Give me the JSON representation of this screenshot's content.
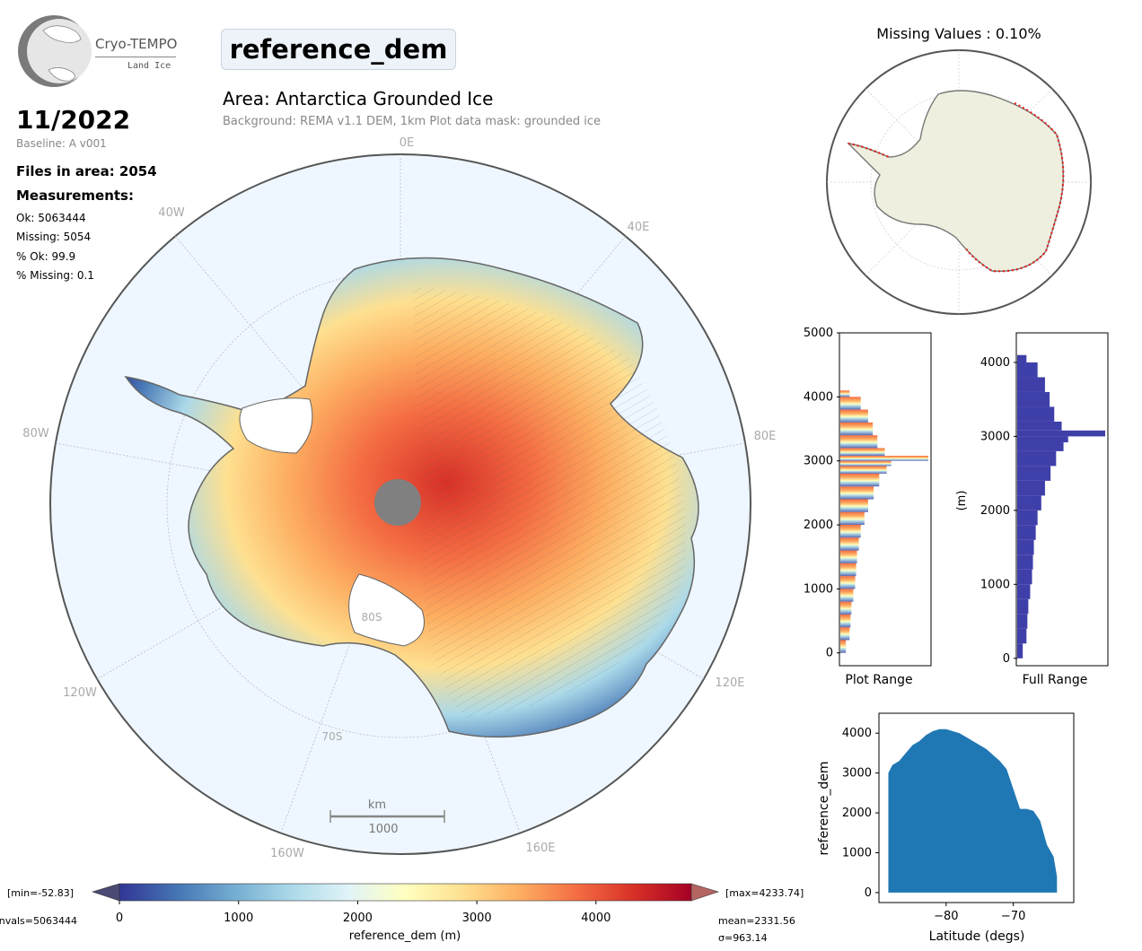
{
  "header": {
    "logo_text": "Cryo-TEMPO",
    "logo_sub": "Land Ice",
    "parameter": "reference_dem",
    "area_title": "Area: Antarctica Grounded Ice",
    "area_subtitle": "Background: REMA v1.1 DEM, 1km   Plot data mask: grounded ice"
  },
  "info": {
    "period": "11/2022",
    "baseline": "Baseline: A v001",
    "files": "Files in area: 2054",
    "measurements_heading": "Measurements:",
    "ok": "Ok: 5063444",
    "missing": "Missing: 5054",
    "pct_ok": "% Ok: 99.9",
    "pct_missing": "% Missing: 0.1"
  },
  "map": {
    "lon_labels": [
      "0E",
      "40E",
      "80E",
      "120E",
      "160E",
      "160W",
      "120W",
      "80W",
      "40W"
    ],
    "lat_labels": [
      "80S",
      "70S"
    ],
    "scalebar_unit": "km",
    "scalebar_value": "1000",
    "ocean_color": "#eef7ff",
    "land_color": "#ffffff"
  },
  "missing_map": {
    "title": "Missing Values : 0.10%",
    "land_color": "#efefdf",
    "missing_color": "#e8211c"
  },
  "colorbar": {
    "min_label": "[min=-52.83]",
    "max_label": "[max=4233.74]",
    "nvals_label": "nvals=5063444",
    "mean_label": "mean=2331.56",
    "sigma_label": "σ=963.14",
    "label": "reference_dem (m)",
    "ticks": [
      "0",
      "1000",
      "2000",
      "3000",
      "4000"
    ],
    "range": [
      0,
      4800
    ],
    "colors": [
      "#313695",
      "#4575b4",
      "#74add1",
      "#abd9e9",
      "#e0f3f8",
      "#ffffbf",
      "#fee090",
      "#fdae61",
      "#f46d43",
      "#d73027",
      "#a50026"
    ]
  },
  "chart_data": [
    {
      "type": "bar",
      "orientation": "horizontal",
      "title": "",
      "xlabel": "Plot Range",
      "ylabel": "",
      "ylim": [
        -200,
        5000
      ],
      "yticks": [
        "0",
        "1000",
        "2000",
        "3000",
        "4000",
        "5000"
      ],
      "bin_edges": [
        0,
        200,
        400,
        600,
        800,
        1000,
        1200,
        1400,
        1600,
        1800,
        2000,
        2200,
        2400,
        2600,
        2800,
        2920,
        3000,
        3080,
        3200,
        3400,
        3600,
        3800,
        4000,
        4100
      ],
      "values": [
        6,
        10,
        11,
        12,
        14,
        16,
        17,
        18,
        20,
        22,
        26,
        30,
        36,
        42,
        50,
        55,
        95,
        48,
        40,
        35,
        30,
        22,
        10
      ]
    },
    {
      "type": "bar",
      "orientation": "horizontal",
      "title": "",
      "xlabel": "Full Range",
      "ylabel": "(m)",
      "ylim": [
        -100,
        4400
      ],
      "yticks": [
        "0",
        "1000",
        "2000",
        "3000",
        "4000"
      ],
      "bin_edges": [
        0,
        200,
        400,
        600,
        800,
        1000,
        1200,
        1400,
        1600,
        1800,
        2000,
        2200,
        2400,
        2600,
        2800,
        2920,
        3000,
        3080,
        3200,
        3400,
        3600,
        3800,
        4000,
        4100
      ],
      "values": [
        6,
        10,
        11,
        12,
        14,
        16,
        17,
        18,
        20,
        22,
        26,
        30,
        36,
        42,
        50,
        55,
        95,
        48,
        40,
        35,
        30,
        22,
        10
      ]
    },
    {
      "type": "scatter",
      "title": "",
      "xlabel": "Latitude (degs)",
      "ylabel": "reference_dem",
      "xlim": [
        -90,
        -61
      ],
      "ylim": [
        -250,
        4500
      ],
      "xticks": [
        "−80",
        "−70"
      ],
      "yticks": [
        "0",
        "1000",
        "2000",
        "3000",
        "4000"
      ],
      "color": "#1f77b4",
      "envelope_lat": [
        -88.6,
        -88,
        -87,
        -86,
        -85,
        -84,
        -83,
        -82,
        -81,
        -80,
        -79,
        -78,
        -77,
        -76,
        -75,
        -74,
        -73,
        -72,
        -71,
        -70,
        -69,
        -68,
        -67,
        -66,
        -65,
        -64,
        -63.5
      ],
      "envelope_max": [
        3000,
        3200,
        3300,
        3500,
        3700,
        3800,
        3950,
        4050,
        4100,
        4100,
        4050,
        4000,
        3900,
        3800,
        3700,
        3600,
        3450,
        3300,
        3100,
        2600,
        2100,
        2100,
        2050,
        1800,
        1200,
        900,
        400
      ],
      "envelope_min": [
        0,
        0,
        0,
        0,
        0,
        0,
        0,
        0,
        0,
        0,
        0,
        0,
        0,
        0,
        0,
        0,
        0,
        0,
        0,
        0,
        0,
        0,
        0,
        0,
        0,
        0,
        0
      ]
    }
  ]
}
